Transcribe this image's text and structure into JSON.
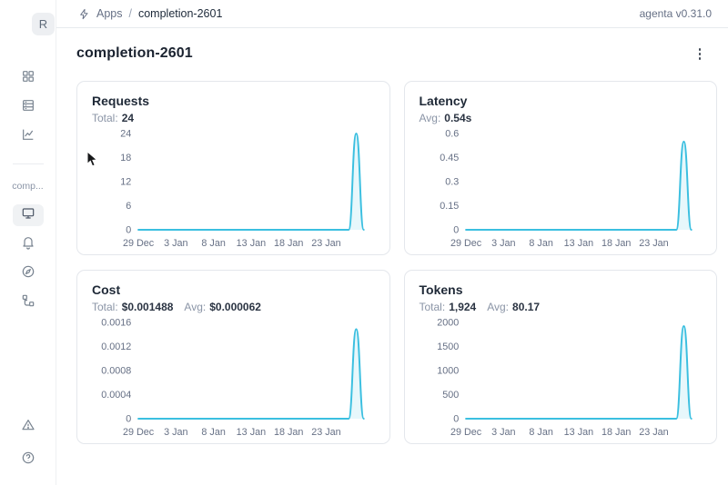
{
  "app": {
    "version_label": "agenta v0.31.0"
  },
  "header": {
    "breadcrumb": {
      "icon": "bolt-icon",
      "section": "Apps",
      "separator": "/",
      "current": "completion-2601"
    }
  },
  "sidebar": {
    "workspace_initial": "R",
    "nav_icons": [
      "grid-icon",
      "table-icon",
      "line-chart-icon"
    ],
    "app_section_label": "comp...",
    "app_nav_icons": [
      "monitor-icon",
      "bell-icon",
      "compass-icon",
      "tree-icon"
    ],
    "selected_icon": "monitor-icon",
    "footer_icons": [
      "warning-triangle-icon",
      "help-circle-icon"
    ]
  },
  "main": {
    "title": "completion-2601",
    "menu_icon": "kebab-menu-icon"
  },
  "cards": [
    {
      "title": "Requests",
      "stats": [
        {
          "label": "Total:",
          "value": "24"
        }
      ]
    },
    {
      "title": "Latency",
      "stats": [
        {
          "label": "Avg:",
          "value": "0.54s"
        }
      ]
    },
    {
      "title": "Cost",
      "stats": [
        {
          "label": "Total:",
          "value": "$0.001488"
        },
        {
          "label": "Avg:",
          "value": "$0.000062"
        }
      ]
    },
    {
      "title": "Tokens",
      "stats": [
        {
          "label": "Total:",
          "value": "1,924"
        },
        {
          "label": "Avg:",
          "value": "80.17"
        }
      ]
    }
  ],
  "colors": {
    "accent_line": "#3bbfe0",
    "card_border": "#e4e7ec",
    "text_muted": "#667085"
  },
  "chart_data": [
    {
      "type": "area",
      "title": "Requests",
      "xlabel": "",
      "ylabel": "",
      "x": [
        "29 Dec",
        "30 Dec",
        "31 Dec",
        "1 Jan",
        "2 Jan",
        "3 Jan",
        "4 Jan",
        "5 Jan",
        "6 Jan",
        "7 Jan",
        "8 Jan",
        "9 Jan",
        "10 Jan",
        "11 Jan",
        "12 Jan",
        "13 Jan",
        "14 Jan",
        "15 Jan",
        "16 Jan",
        "17 Jan",
        "18 Jan",
        "19 Jan",
        "20 Jan",
        "21 Jan",
        "22 Jan",
        "23 Jan",
        "24 Jan",
        "25 Jan",
        "26 Jan",
        "27 Jan",
        "28 Jan"
      ],
      "values": [
        0,
        0,
        0,
        0,
        0,
        0,
        0,
        0,
        0,
        0,
        0,
        0,
        0,
        0,
        0,
        0,
        0,
        0,
        0,
        0,
        0,
        0,
        0,
        0,
        0,
        0,
        0,
        0,
        0,
        24,
        0
      ],
      "yticks": [
        "0",
        "6",
        "12",
        "18",
        "24"
      ],
      "ylim": [
        0,
        24
      ],
      "x_ticks": [
        {
          "label": "29 Dec",
          "index": 0
        },
        {
          "label": "3 Jan",
          "index": 5
        },
        {
          "label": "8 Jan",
          "index": 10
        },
        {
          "label": "13 Jan",
          "index": 15
        },
        {
          "label": "18 Jan",
          "index": 20
        },
        {
          "label": "23 Jan",
          "index": 25
        }
      ],
      "color": "#3bbfe0",
      "grid": false,
      "legend": false
    },
    {
      "type": "area",
      "title": "Latency",
      "xlabel": "",
      "ylabel": "",
      "x": [
        "29 Dec",
        "30 Dec",
        "31 Dec",
        "1 Jan",
        "2 Jan",
        "3 Jan",
        "4 Jan",
        "5 Jan",
        "6 Jan",
        "7 Jan",
        "8 Jan",
        "9 Jan",
        "10 Jan",
        "11 Jan",
        "12 Jan",
        "13 Jan",
        "14 Jan",
        "15 Jan",
        "16 Jan",
        "17 Jan",
        "18 Jan",
        "19 Jan",
        "20 Jan",
        "21 Jan",
        "22 Jan",
        "23 Jan",
        "24 Jan",
        "25 Jan",
        "26 Jan",
        "27 Jan",
        "28 Jan"
      ],
      "values": [
        0,
        0,
        0,
        0,
        0,
        0,
        0,
        0,
        0,
        0,
        0,
        0,
        0,
        0,
        0,
        0,
        0,
        0,
        0,
        0,
        0,
        0,
        0,
        0,
        0,
        0,
        0,
        0,
        0,
        0.55,
        0
      ],
      "yticks": [
        "0",
        "0.15",
        "0.3",
        "0.45",
        "0.6"
      ],
      "ylim": [
        0,
        0.6
      ],
      "x_ticks": [
        {
          "label": "29 Dec",
          "index": 0
        },
        {
          "label": "3 Jan",
          "index": 5
        },
        {
          "label": "8 Jan",
          "index": 10
        },
        {
          "label": "13 Jan",
          "index": 15
        },
        {
          "label": "18 Jan",
          "index": 20
        },
        {
          "label": "23 Jan",
          "index": 25
        }
      ],
      "color": "#3bbfe0",
      "grid": false,
      "legend": false
    },
    {
      "type": "area",
      "title": "Cost",
      "xlabel": "",
      "ylabel": "",
      "x": [
        "29 Dec",
        "30 Dec",
        "31 Dec",
        "1 Jan",
        "2 Jan",
        "3 Jan",
        "4 Jan",
        "5 Jan",
        "6 Jan",
        "7 Jan",
        "8 Jan",
        "9 Jan",
        "10 Jan",
        "11 Jan",
        "12 Jan",
        "13 Jan",
        "14 Jan",
        "15 Jan",
        "16 Jan",
        "17 Jan",
        "18 Jan",
        "19 Jan",
        "20 Jan",
        "21 Jan",
        "22 Jan",
        "23 Jan",
        "24 Jan",
        "25 Jan",
        "26 Jan",
        "27 Jan",
        "28 Jan"
      ],
      "values": [
        0,
        0,
        0,
        0,
        0,
        0,
        0,
        0,
        0,
        0,
        0,
        0,
        0,
        0,
        0,
        0,
        0,
        0,
        0,
        0,
        0,
        0,
        0,
        0,
        0,
        0,
        0,
        0,
        0,
        0.001488,
        0
      ],
      "yticks": [
        "0",
        "0.0004",
        "0.0008",
        "0.0012",
        "0.0016"
      ],
      "ylim": [
        0,
        0.0016
      ],
      "x_ticks": [
        {
          "label": "29 Dec",
          "index": 0
        },
        {
          "label": "3 Jan",
          "index": 5
        },
        {
          "label": "8 Jan",
          "index": 10
        },
        {
          "label": "13 Jan",
          "index": 15
        },
        {
          "label": "18 Jan",
          "index": 20
        },
        {
          "label": "23 Jan",
          "index": 25
        }
      ],
      "color": "#3bbfe0",
      "grid": false,
      "legend": false
    },
    {
      "type": "area",
      "title": "Tokens",
      "xlabel": "",
      "ylabel": "",
      "x": [
        "29 Dec",
        "30 Dec",
        "31 Dec",
        "1 Jan",
        "2 Jan",
        "3 Jan",
        "4 Jan",
        "5 Jan",
        "6 Jan",
        "7 Jan",
        "8 Jan",
        "9 Jan",
        "10 Jan",
        "11 Jan",
        "12 Jan",
        "13 Jan",
        "14 Jan",
        "15 Jan",
        "16 Jan",
        "17 Jan",
        "18 Jan",
        "19 Jan",
        "20 Jan",
        "21 Jan",
        "22 Jan",
        "23 Jan",
        "24 Jan",
        "25 Jan",
        "26 Jan",
        "27 Jan",
        "28 Jan"
      ],
      "values": [
        0,
        0,
        0,
        0,
        0,
        0,
        0,
        0,
        0,
        0,
        0,
        0,
        0,
        0,
        0,
        0,
        0,
        0,
        0,
        0,
        0,
        0,
        0,
        0,
        0,
        0,
        0,
        0,
        0,
        1924,
        0
      ],
      "yticks": [
        "0",
        "500",
        "1000",
        "1500",
        "2000"
      ],
      "ylim": [
        0,
        2000
      ],
      "x_ticks": [
        {
          "label": "29 Dec",
          "index": 0
        },
        {
          "label": "3 Jan",
          "index": 5
        },
        {
          "label": "8 Jan",
          "index": 10
        },
        {
          "label": "13 Jan",
          "index": 15
        },
        {
          "label": "18 Jan",
          "index": 20
        },
        {
          "label": "23 Jan",
          "index": 25
        }
      ],
      "color": "#3bbfe0",
      "grid": false,
      "legend": false
    }
  ]
}
